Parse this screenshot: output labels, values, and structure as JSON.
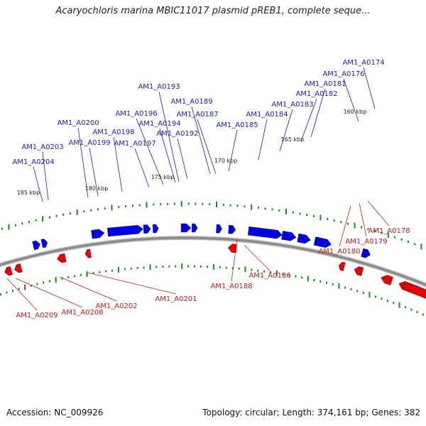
{
  "title": "Acaryochloris marina MBIC11017 plasmid pREB1, complete seque...",
  "footer": {
    "accession": "Accession: NC_009926",
    "summary": "Topology: circular; Length: 374,161 bp; Genes: 382"
  },
  "colors": {
    "forward_gene": "#0000e6",
    "reverse_gene": "#e60000",
    "backbone": "#888888",
    "tick": "#1a8a1a",
    "label_forward": "#1a1acc",
    "label_reverse": "#cc1a1a"
  },
  "kbp_ticks": [
    "160 kbp",
    "165 kbp",
    "170 kbp",
    "175 kbp",
    "180 kbp",
    "185 kbp"
  ],
  "forward_genes": [
    "AM1_A0174",
    "AM1_A0176",
    "AM1_A0181",
    "AM1_A0182",
    "AM1_A0183",
    "AM1_A0184",
    "AM1_A0185",
    "AM1_A0187",
    "AM1_A0189",
    "AM1_A0192",
    "AM1_A0193",
    "AM1_A0194",
    "AM1_A0196",
    "AM1_A0197",
    "AM1_A0198",
    "AM1_A0199",
    "AM1_A0200",
    "AM1_A0203",
    "AM1_A0204"
  ],
  "reverse_genes": [
    "AM1_A0178",
    "AM1_A0179",
    "AM1_A0180",
    "AM1_A0186",
    "AM1_A0188",
    "AM1_A0201",
    "AM1_A0202",
    "AM1_A0208",
    "AM1_A0209"
  ]
}
